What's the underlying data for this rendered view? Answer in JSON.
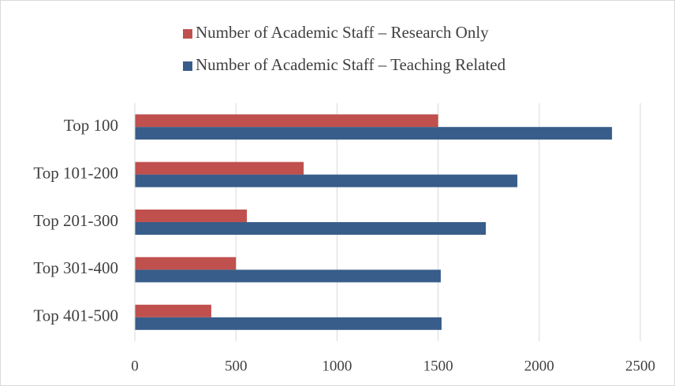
{
  "chart_data": {
    "type": "bar",
    "orientation": "horizontal",
    "categories": [
      "Top 100",
      "Top 101-200",
      "Top 201-300",
      "Top 301-400",
      "Top 401-500"
    ],
    "series": [
      {
        "name": "Number of Academic Staff – Research Only",
        "color": "#c0504d",
        "values": [
          1500,
          835,
          554,
          500,
          378
        ]
      },
      {
        "name": "Number of Academic Staff – Teaching Related",
        "color": "#385d8a",
        "values": [
          2360,
          1892,
          1736,
          1513,
          1517
        ]
      }
    ],
    "xlim": [
      0,
      2500
    ],
    "xticks": [
      0,
      500,
      1000,
      1500,
      2000,
      2500
    ],
    "grid": true,
    "legend": "top"
  }
}
